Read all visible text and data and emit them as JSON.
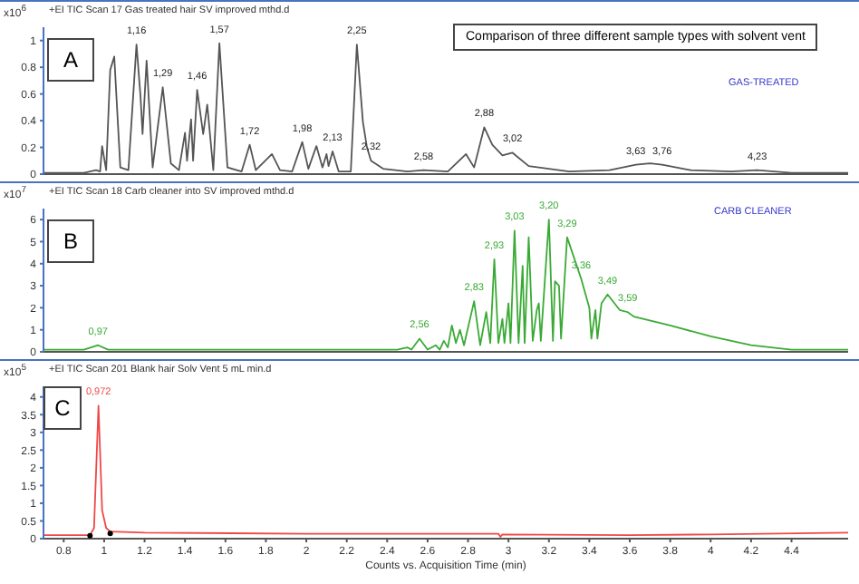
{
  "chart_data": [
    {
      "type": "line",
      "title": "+EI TIC Scan 17 Gas treated hair SV improved mthd.d",
      "ylabel": "x10$^{6}$",
      "xlim": [
        0.7,
        4.68
      ],
      "xticks": [
        0.8,
        1,
        1.2,
        1.4,
        1.6,
        1.8,
        2,
        2.2,
        2.4,
        2.6,
        2.8,
        3,
        3.2,
        3.4,
        3.6,
        3.8,
        4,
        4.2,
        4.4
      ],
      "ylim": [
        0,
        1.1
      ],
      "yticks": [
        0,
        0.2,
        0.4,
        0.6,
        0.8,
        1
      ],
      "tick_labels": "y",
      "legend": false,
      "marker": "none",
      "annotations": [
        "A",
        "Comparison of three different sample types with solvent vent",
        "GAS-TREATED",
        {
          "text": "1,16",
          "x": 1.16,
          "y": 0.97
        },
        {
          "text": "1,29",
          "x": 1.29,
          "y": 0.65
        },
        {
          "text": "1,46",
          "x": 1.46,
          "y": 0.63
        },
        {
          "text": "1,57",
          "x": 1.57,
          "y": 0.98
        },
        {
          "text": "1,72",
          "x": 1.72,
          "y": 0.22
        },
        {
          "text": "1,98",
          "x": 1.98,
          "y": 0.24
        },
        {
          "text": "2,13",
          "x": 2.13,
          "y": 0.17
        },
        {
          "text": "2,25",
          "x": 2.25,
          "y": 0.97
        },
        {
          "text": "2,32",
          "x": 2.32,
          "y": 0.1
        },
        {
          "text": "2,58",
          "x": 2.58,
          "y": 0.03
        },
        {
          "text": "2,88",
          "x": 2.88,
          "y": 0.35
        },
        {
          "text": "3,02",
          "x": 3.02,
          "y": 0.16
        },
        {
          "text": "3,63",
          "x": 3.63,
          "y": 0.07
        },
        {
          "text": "3,76",
          "x": 3.76,
          "y": 0.07
        },
        {
          "text": "4,23",
          "x": 4.23,
          "y": 0.03
        }
      ],
      "series": [
        {
          "color": "#555555",
          "x": [
            0.7,
            0.9,
            0.96,
            0.98,
            0.99,
            1.01,
            1.03,
            1.05,
            1.08,
            1.12,
            1.16,
            1.18,
            1.19,
            1.21,
            1.24,
            1.29,
            1.33,
            1.37,
            1.4,
            1.41,
            1.43,
            1.44,
            1.46,
            1.49,
            1.51,
            1.54,
            1.57,
            1.61,
            1.68,
            1.72,
            1.75,
            1.83,
            1.87,
            1.93,
            1.98,
            2.01,
            2.05,
            2.08,
            2.1,
            2.11,
            2.13,
            2.16,
            2.22,
            2.25,
            2.28,
            2.3,
            2.32,
            2.38,
            2.5,
            2.58,
            2.7,
            2.79,
            2.83,
            2.88,
            2.92,
            2.97,
            3.02,
            3.1,
            3.3,
            3.5,
            3.63,
            3.7,
            3.76,
            3.9,
            4.1,
            4.23,
            4.4,
            4.68
          ],
          "values": [
            0.01,
            0.01,
            0.03,
            0.02,
            0.21,
            0.03,
            0.78,
            0.88,
            0.05,
            0.03,
            0.97,
            0.58,
            0.3,
            0.85,
            0.05,
            0.65,
            0.08,
            0.03,
            0.31,
            0.1,
            0.41,
            0.1,
            0.63,
            0.3,
            0.52,
            0.03,
            0.98,
            0.05,
            0.02,
            0.22,
            0.03,
            0.15,
            0.03,
            0.02,
            0.24,
            0.04,
            0.21,
            0.05,
            0.15,
            0.06,
            0.17,
            0.02,
            0.02,
            0.97,
            0.39,
            0.2,
            0.1,
            0.04,
            0.02,
            0.03,
            0.02,
            0.15,
            0.05,
            0.35,
            0.22,
            0.14,
            0.16,
            0.06,
            0.02,
            0.03,
            0.07,
            0.08,
            0.07,
            0.03,
            0.02,
            0.03,
            0.01,
            0.01
          ]
        }
      ]
    },
    {
      "type": "line",
      "title": "+EI TIC Scan 18 Carb cleaner into SV improved mthd.d",
      "ylabel": "x10$^{7}$",
      "xlim": [
        0.7,
        4.68
      ],
      "xticks": [
        0.8,
        1,
        1.2,
        1.4,
        1.6,
        1.8,
        2,
        2.2,
        2.4,
        2.6,
        2.8,
        3,
        3.2,
        3.4,
        3.6,
        3.8,
        4,
        4.2,
        4.4
      ],
      "ylim": [
        0,
        6.5
      ],
      "yticks": [
        0,
        1,
        2,
        3,
        4,
        5,
        6
      ],
      "tick_labels": "y",
      "legend": false,
      "marker": "none",
      "annotations": [
        "B",
        "CARB CLEANER",
        {
          "text": "0,97",
          "x": 0.97,
          "y": 0.3
        },
        {
          "text": "2,56",
          "x": 2.56,
          "y": 0.6
        },
        {
          "text": "2,83",
          "x": 2.83,
          "y": 2.3
        },
        {
          "text": "2,93",
          "x": 2.93,
          "y": 4.2
        },
        {
          "text": "3,03",
          "x": 3.03,
          "y": 5.5
        },
        {
          "text": "3,20",
          "x": 3.2,
          "y": 6.0
        },
        {
          "text": "3,29",
          "x": 3.29,
          "y": 5.2
        },
        {
          "text": "3,36",
          "x": 3.36,
          "y": 3.3
        },
        {
          "text": "3,49",
          "x": 3.49,
          "y": 2.6
        },
        {
          "text": "3,59",
          "x": 3.59,
          "y": 1.8
        }
      ],
      "series": [
        {
          "color": "#3aaa35",
          "x": [
            0.7,
            0.9,
            0.97,
            1.02,
            2.45,
            2.5,
            2.52,
            2.56,
            2.6,
            2.64,
            2.66,
            2.68,
            2.7,
            2.72,
            2.74,
            2.76,
            2.78,
            2.83,
            2.86,
            2.89,
            2.91,
            2.93,
            2.95,
            2.97,
            2.98,
            3.0,
            3.01,
            3.03,
            3.05,
            3.07,
            3.08,
            3.1,
            3.12,
            3.14,
            3.15,
            3.16,
            3.2,
            3.22,
            3.23,
            3.25,
            3.26,
            3.29,
            3.36,
            3.4,
            3.41,
            3.43,
            3.44,
            3.46,
            3.49,
            3.55,
            3.59,
            3.62,
            3.8,
            4.0,
            4.2,
            4.4,
            4.68
          ],
          "values": [
            0.1,
            0.1,
            0.3,
            0.1,
            0.1,
            0.2,
            0.1,
            0.6,
            0.1,
            0.3,
            0.1,
            0.5,
            0.2,
            1.2,
            0.4,
            1.0,
            0.3,
            2.3,
            0.3,
            1.8,
            0.4,
            4.2,
            0.4,
            1.5,
            0.4,
            2.2,
            0.4,
            5.5,
            0.4,
            3.9,
            0.4,
            5.2,
            0.5,
            1.9,
            2.2,
            0.5,
            6.0,
            0.5,
            3.2,
            3.0,
            0.6,
            5.2,
            3.3,
            2.0,
            0.6,
            1.9,
            0.6,
            2.2,
            2.6,
            1.9,
            1.8,
            1.6,
            1.2,
            0.7,
            0.3,
            0.1,
            0.1
          ]
        }
      ]
    },
    {
      "type": "line",
      "title": "+EI TIC Scan 201 Blank hair Solv Vent 5 mL min.d",
      "ylabel": "x10$^{5}$",
      "xlabel": "Counts vs. Acquisition Time (min)",
      "xlim": [
        0.7,
        4.68
      ],
      "xticks": [
        0.8,
        1,
        1.2,
        1.4,
        1.6,
        1.8,
        2,
        2.2,
        2.4,
        2.6,
        2.8,
        3,
        3.2,
        3.4,
        3.6,
        3.8,
        4,
        4.2,
        4.4
      ],
      "ylim": [
        0,
        4.3
      ],
      "yticks": [
        0,
        0.5,
        1,
        1.5,
        2,
        2.5,
        3,
        3.5,
        4
      ],
      "legend": false,
      "marker": "none",
      "annotations": [
        "C",
        {
          "text": "0,972",
          "x": 0.972,
          "y": 3.75
        }
      ],
      "series": [
        {
          "color": "#f04848",
          "x": [
            0.7,
            0.93,
            0.95,
            0.972,
            0.99,
            1.01,
            1.03,
            1.2,
            2.0,
            2.95,
            2.96,
            2.97,
            3.6,
            4.0,
            4.68
          ],
          "values": [
            0.1,
            0.1,
            0.3,
            3.75,
            0.8,
            0.3,
            0.2,
            0.17,
            0.14,
            0.14,
            0.05,
            0.12,
            0.1,
            0.12,
            0.17
          ]
        },
        {
          "type": "scatter",
          "color": "#000000",
          "marker": "circle",
          "x": [
            0.93,
            1.03
          ],
          "values": [
            0.08,
            0.15
          ]
        }
      ]
    }
  ]
}
